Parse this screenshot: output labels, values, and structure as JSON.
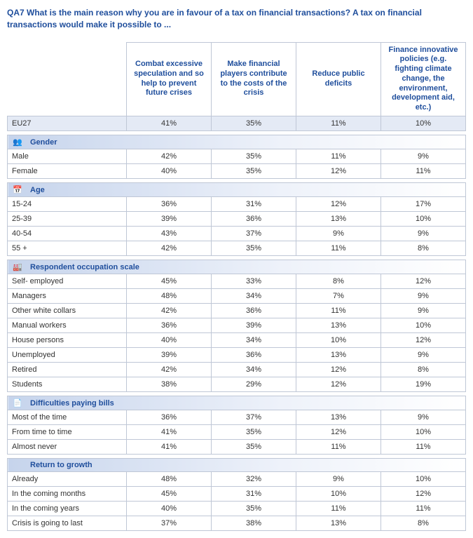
{
  "question": "QA7  What is the main reason why you are in favour of a tax on financial transactions? A tax on financial transactions would make it possible to ...",
  "columns": [
    "Combat excessive speculation and so help to prevent future crises",
    "Make financial players contribute to the costs of the crisis",
    "Reduce public deficits",
    "Finance innovative policies (e.g. fighting climate change, the environment, development aid, etc.)"
  ],
  "eu27": {
    "label": "EU27",
    "values": [
      "41%",
      "35%",
      "11%",
      "10%"
    ]
  },
  "groups": [
    {
      "title": "Gender",
      "icon": "gender-icon",
      "glyph": "👥",
      "rows": [
        {
          "label": "Male",
          "values": [
            "42%",
            "35%",
            "11%",
            "9%"
          ]
        },
        {
          "label": "Female",
          "values": [
            "40%",
            "35%",
            "12%",
            "11%"
          ]
        }
      ]
    },
    {
      "title": "Age",
      "icon": "age-icon",
      "glyph": "📅",
      "rows": [
        {
          "label": "15-24",
          "values": [
            "36%",
            "31%",
            "12%",
            "17%"
          ]
        },
        {
          "label": "25-39",
          "values": [
            "39%",
            "36%",
            "13%",
            "10%"
          ]
        },
        {
          "label": "40-54",
          "values": [
            "43%",
            "37%",
            "9%",
            "9%"
          ]
        },
        {
          "label": "55 +",
          "values": [
            "42%",
            "35%",
            "11%",
            "8%"
          ]
        }
      ]
    },
    {
      "title": "Respondent occupation scale",
      "icon": "occupation-icon",
      "glyph": "🏭",
      "rows": [
        {
          "label": "Self- employed",
          "values": [
            "45%",
            "33%",
            "8%",
            "12%"
          ]
        },
        {
          "label": "Managers",
          "values": [
            "48%",
            "34%",
            "7%",
            "9%"
          ]
        },
        {
          "label": "Other white collars",
          "values": [
            "42%",
            "36%",
            "11%",
            "9%"
          ]
        },
        {
          "label": "Manual workers",
          "values": [
            "36%",
            "39%",
            "13%",
            "10%"
          ]
        },
        {
          "label": "House persons",
          "values": [
            "40%",
            "34%",
            "10%",
            "12%"
          ]
        },
        {
          "label": "Unemployed",
          "values": [
            "39%",
            "36%",
            "13%",
            "9%"
          ]
        },
        {
          "label": "Retired",
          "values": [
            "42%",
            "34%",
            "12%",
            "8%"
          ]
        },
        {
          "label": "Students",
          "values": [
            "38%",
            "29%",
            "12%",
            "19%"
          ]
        }
      ]
    },
    {
      "title": "Difficulties paying bills",
      "icon": "bills-icon",
      "glyph": "📄",
      "rows": [
        {
          "label": "Most of the time",
          "values": [
            "36%",
            "37%",
            "13%",
            "9%"
          ]
        },
        {
          "label": "From time to time",
          "values": [
            "41%",
            "35%",
            "12%",
            "10%"
          ]
        },
        {
          "label": "Almost never",
          "values": [
            "41%",
            "35%",
            "11%",
            "11%"
          ]
        }
      ]
    },
    {
      "title": "Return to growth",
      "icon": "growth-icon",
      "glyph": " ",
      "rows": [
        {
          "label": "Already",
          "values": [
            "48%",
            "32%",
            "9%",
            "10%"
          ]
        },
        {
          "label": "In the coming months",
          "values": [
            "45%",
            "31%",
            "10%",
            "12%"
          ]
        },
        {
          "label": "In the coming years",
          "values": [
            "40%",
            "35%",
            "11%",
            "11%"
          ]
        },
        {
          "label": "Crisis is going to last",
          "values": [
            "37%",
            "38%",
            "13%",
            "8%"
          ]
        }
      ]
    }
  ],
  "colors": {
    "heading": "#1f4e9c",
    "border": "#bfc7d6",
    "eu27_bg": "#e4eaf5",
    "group_grad_start": "#c6d4ec",
    "group_grad_end": "#ffffff"
  }
}
